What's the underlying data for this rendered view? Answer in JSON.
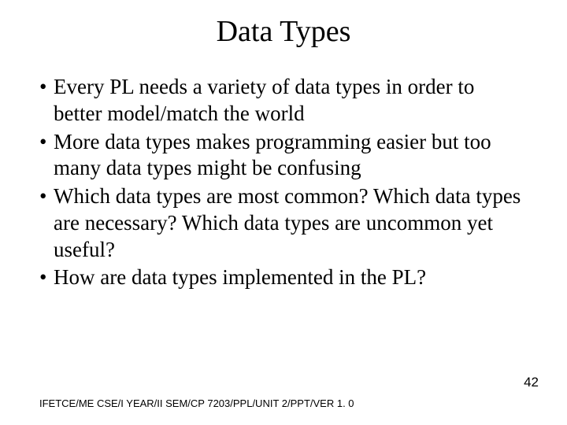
{
  "slide": {
    "title": "Data Types",
    "title_fontsize": 38,
    "title_color": "#000000",
    "title_align": "center",
    "bullets": [
      "Every PL needs a variety of data types in order to better model/match the world",
      "More data types makes programming easier but too many data types might be confusing",
      "Which data types are most common?  Which data types are necessary?  Which data types are uncommon yet useful?",
      "How are data types implemented in the PL?"
    ],
    "bullet_marker": "•",
    "body_fontsize": 27,
    "body_color": "#000000",
    "footer": "IFETCE/ME CSE/I YEAR/II SEM/CP 7203/PPL/UNIT 2/PPT/VER 1. 0",
    "footer_fontsize": 13,
    "page_number": "42",
    "page_number_fontsize": 17,
    "background_color": "#ffffff",
    "font_family": "Times New Roman"
  }
}
